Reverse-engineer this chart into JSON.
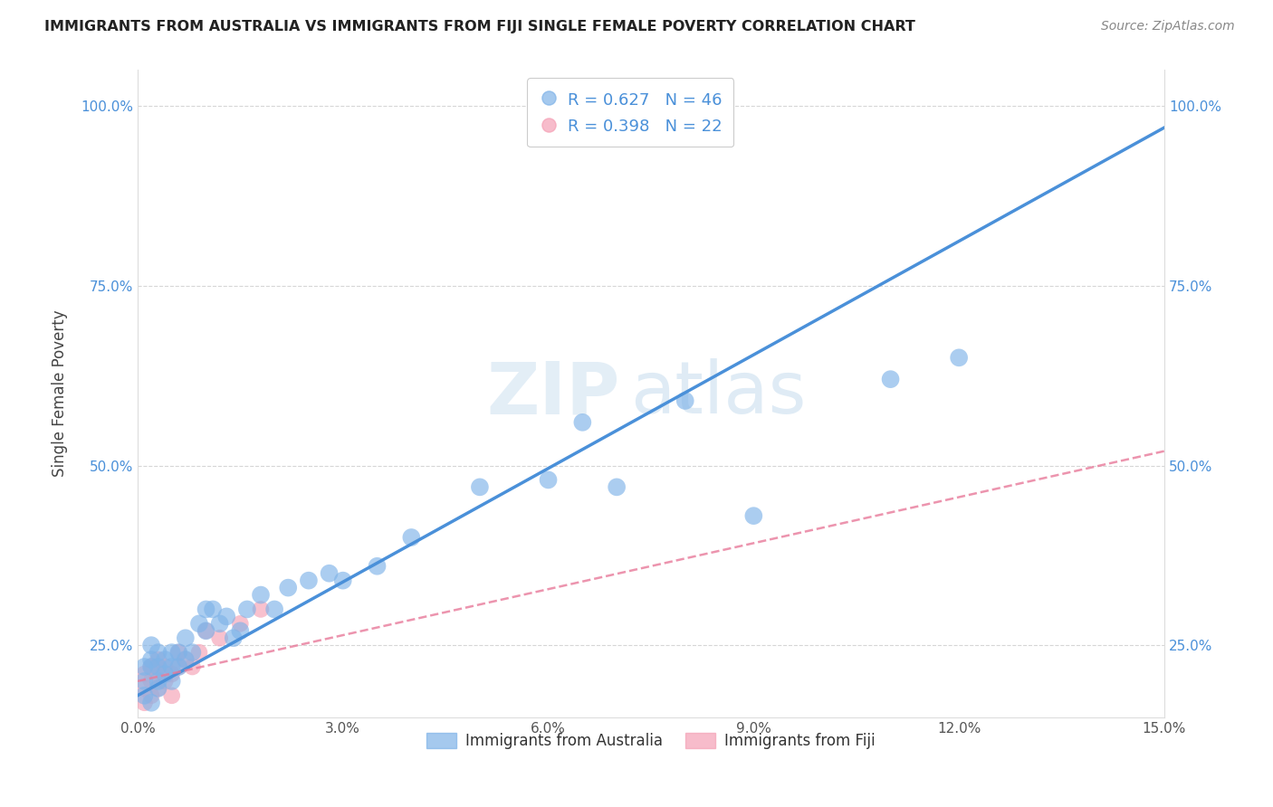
{
  "title": "IMMIGRANTS FROM AUSTRALIA VS IMMIGRANTS FROM FIJI SINGLE FEMALE POVERTY CORRELATION CHART",
  "source": "Source: ZipAtlas.com",
  "xlabel": "",
  "ylabel": "Single Female Poverty",
  "xlim": [
    0.0,
    0.15
  ],
  "ylim": [
    0.15,
    1.05
  ],
  "xticks": [
    0.0,
    0.03,
    0.06,
    0.09,
    0.12,
    0.15
  ],
  "xtick_labels": [
    "0.0%",
    "3.0%",
    "6.0%",
    "9.0%",
    "12.0%",
    "15.0%"
  ],
  "yticks": [
    0.25,
    0.5,
    0.75,
    1.0
  ],
  "ytick_labels": [
    "25.0%",
    "50.0%",
    "75.0%",
    "100.0%"
  ],
  "australia_R": 0.627,
  "australia_N": 46,
  "fiji_R": 0.398,
  "fiji_N": 22,
  "australia_color": "#7fb3e8",
  "fiji_color": "#f5a0b5",
  "australia_line_color": "#4a90d9",
  "fiji_line_color": "#e87a9a",
  "watermark_zip": "ZIP",
  "watermark_atlas": "atlas",
  "australia_x": [
    0.001,
    0.001,
    0.001,
    0.002,
    0.002,
    0.002,
    0.002,
    0.003,
    0.003,
    0.003,
    0.003,
    0.004,
    0.004,
    0.005,
    0.005,
    0.005,
    0.006,
    0.006,
    0.007,
    0.007,
    0.008,
    0.009,
    0.01,
    0.01,
    0.011,
    0.012,
    0.013,
    0.014,
    0.015,
    0.016,
    0.018,
    0.02,
    0.022,
    0.025,
    0.028,
    0.03,
    0.035,
    0.04,
    0.05,
    0.06,
    0.065,
    0.07,
    0.08,
    0.09,
    0.11,
    0.12
  ],
  "australia_y": [
    0.2,
    0.22,
    0.18,
    0.17,
    0.22,
    0.23,
    0.25,
    0.19,
    0.22,
    0.24,
    0.2,
    0.21,
    0.23,
    0.22,
    0.24,
    0.2,
    0.24,
    0.22,
    0.26,
    0.23,
    0.24,
    0.28,
    0.27,
    0.3,
    0.3,
    0.28,
    0.29,
    0.26,
    0.27,
    0.3,
    0.32,
    0.3,
    0.33,
    0.34,
    0.35,
    0.34,
    0.36,
    0.4,
    0.47,
    0.48,
    0.56,
    0.47,
    0.59,
    0.43,
    0.62,
    0.65
  ],
  "fiji_x": [
    0.001,
    0.001,
    0.001,
    0.002,
    0.002,
    0.002,
    0.003,
    0.003,
    0.003,
    0.004,
    0.004,
    0.005,
    0.005,
    0.006,
    0.006,
    0.007,
    0.008,
    0.009,
    0.01,
    0.012,
    0.015,
    0.018
  ],
  "fiji_y": [
    0.17,
    0.19,
    0.21,
    0.18,
    0.2,
    0.22,
    0.19,
    0.21,
    0.23,
    0.2,
    0.22,
    0.18,
    0.21,
    0.22,
    0.24,
    0.23,
    0.22,
    0.24,
    0.27,
    0.26,
    0.28,
    0.3
  ],
  "aus_line_x0": 0.0,
  "aus_line_y0": 0.18,
  "aus_line_x1": 0.15,
  "aus_line_y1": 0.97,
  "fiji_line_x0": 0.0,
  "fiji_line_y0": 0.2,
  "fiji_line_x1": 0.15,
  "fiji_line_y1": 0.52,
  "australia_scatter_size": 200,
  "fiji_scatter_size": 180,
  "background_color": "#ffffff",
  "grid_color": "#bbbbbb"
}
